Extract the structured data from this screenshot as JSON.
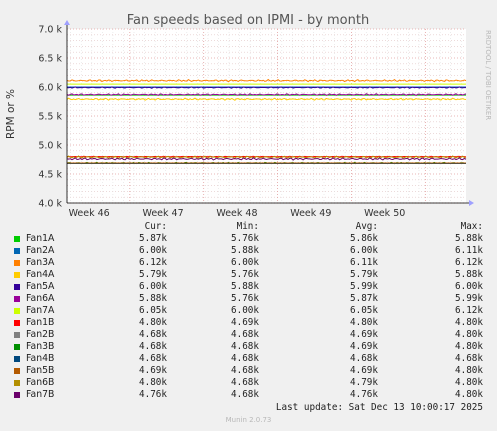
{
  "chart_data": {
    "type": "line",
    "title": "Fan speeds based on IPMI - by month",
    "ylabel": "RPM or %",
    "ylim": [
      4000,
      7000
    ],
    "yticks": [
      {
        "value": 4000,
        "label": "4.0 k"
      },
      {
        "value": 4500,
        "label": "4.5 k"
      },
      {
        "value": 5000,
        "label": "5.0 k"
      },
      {
        "value": 5500,
        "label": "5.5 k"
      },
      {
        "value": 6000,
        "label": "6.0 k"
      },
      {
        "value": 6500,
        "label": "6.5 k"
      },
      {
        "value": 7000,
        "label": "7.0 k"
      }
    ],
    "xlim": [
      0,
      5.4
    ],
    "xticks": [
      {
        "value": 0.3,
        "label": "Week 46"
      },
      {
        "value": 1.3,
        "label": "Week 47"
      },
      {
        "value": 2.3,
        "label": "Week 48"
      },
      {
        "value": 3.3,
        "label": "Week 49"
      },
      {
        "value": 4.3,
        "label": "Week 50"
      }
    ],
    "week_boundaries": [
      0.85,
      1.85,
      2.85,
      3.85,
      4.85
    ],
    "grid": true,
    "side_label": "RRDTOOL / TOBI OETIKER",
    "series": [
      {
        "name": "Fan1A",
        "color": "#00cc00",
        "cur": "5.87k",
        "min": "5.76k",
        "avg": "5.86k",
        "max": "5.88k",
        "value": 5860,
        "noise": 0
      },
      {
        "name": "Fan2A",
        "color": "#0066b3",
        "cur": "6.00k",
        "min": "5.88k",
        "avg": "6.00k",
        "max": "6.11k",
        "value": 6000,
        "noise": 0
      },
      {
        "name": "Fan3A",
        "color": "#ff8000",
        "cur": "6.12k",
        "min": "6.00k",
        "avg": "6.11k",
        "max": "6.12k",
        "value": 6110,
        "noise": 18
      },
      {
        "name": "Fan4A",
        "color": "#ffcc00",
        "cur": "5.79k",
        "min": "5.76k",
        "avg": "5.79k",
        "max": "5.88k",
        "value": 5790,
        "noise": 18
      },
      {
        "name": "Fan5A",
        "color": "#330099",
        "cur": "6.00k",
        "min": "5.88k",
        "avg": "5.99k",
        "max": "6.00k",
        "value": 5990,
        "noise": 12
      },
      {
        "name": "Fan6A",
        "color": "#990099",
        "cur": "5.88k",
        "min": "5.76k",
        "avg": "5.87k",
        "max": "5.99k",
        "value": 5870,
        "noise": 15
      },
      {
        "name": "Fan7A",
        "color": "#ccff00",
        "cur": "6.05k",
        "min": "6.00k",
        "avg": "6.05k",
        "max": "6.12k",
        "value": 6050,
        "noise": 0
      },
      {
        "name": "Fan1B",
        "color": "#ff0000",
        "cur": "4.80k",
        "min": "4.69k",
        "avg": "4.80k",
        "max": "4.80k",
        "value": 4800,
        "noise": 6
      },
      {
        "name": "Fan2B",
        "color": "#808080",
        "cur": "4.68k",
        "min": "4.68k",
        "avg": "4.69k",
        "max": "4.80k",
        "value": 4690,
        "noise": 0
      },
      {
        "name": "Fan3B",
        "color": "#008f00",
        "cur": "4.68k",
        "min": "4.68k",
        "avg": "4.69k",
        "max": "4.80k",
        "value": 4690,
        "noise": 12
      },
      {
        "name": "Fan4B",
        "color": "#00487d",
        "cur": "4.68k",
        "min": "4.68k",
        "avg": "4.68k",
        "max": "4.68k",
        "value": 4680,
        "noise": 0
      },
      {
        "name": "Fan5B",
        "color": "#b35a00",
        "cur": "4.69k",
        "min": "4.68k",
        "avg": "4.69k",
        "max": "4.80k",
        "value": 4690,
        "noise": 0
      },
      {
        "name": "Fan6B",
        "color": "#b38f00",
        "cur": "4.80k",
        "min": "4.68k",
        "avg": "4.79k",
        "max": "4.80k",
        "value": 4790,
        "noise": 20
      },
      {
        "name": "Fan7B",
        "color": "#6b006b",
        "cur": "4.76k",
        "min": "4.68k",
        "avg": "4.76k",
        "max": "4.80k",
        "value": 4760,
        "noise": 20
      }
    ]
  },
  "legend_headers": {
    "cur": "Cur:",
    "min": "Min:",
    "avg": "Avg:",
    "max": "Max:"
  },
  "footer": {
    "last_update": "Last update: Sat Dec 13 10:00:17 2025",
    "version": "Munin 2.0.73"
  }
}
